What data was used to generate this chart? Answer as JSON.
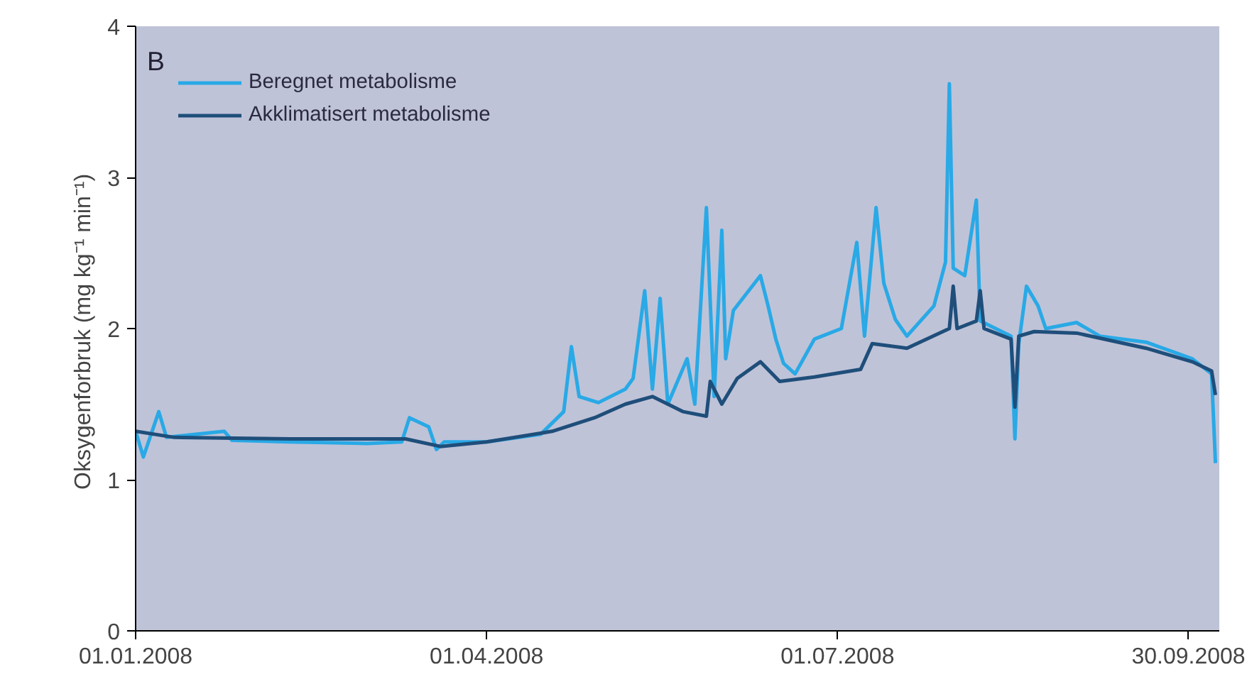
{
  "chart_data": {
    "type": "line",
    "title": "B",
    "ylabel": "Oksygenforbruk  (mg kg⁻¹ min⁻¹)",
    "xlim": [
      "2008-01-01",
      "2008-10-08"
    ],
    "xticks": [
      {
        "value": "2008-01-01",
        "label": "01.01.2008"
      },
      {
        "value": "2008-04-01",
        "label": "01.04.2008"
      },
      {
        "value": "2008-07-01",
        "label": "01.07.2008"
      },
      {
        "value": "2008-09-30",
        "label": "30.09.2008"
      }
    ],
    "ylim": [
      0,
      4
    ],
    "yticks": [
      0,
      1,
      2,
      3,
      4
    ],
    "grid": false,
    "legend": "top left",
    "marker": "none",
    "line_style": "solid",
    "series": [
      {
        "name": "Beregnet metabolisme",
        "color": "#29a9e6",
        "x": [
          "2008-01-01",
          "2008-01-03",
          "2008-01-05",
          "2008-01-07",
          "2008-01-09",
          "2008-01-24",
          "2008-01-26",
          "2008-02-10",
          "2008-03-01",
          "2008-03-10",
          "2008-03-12",
          "2008-03-17",
          "2008-03-19",
          "2008-03-21",
          "2008-04-01",
          "2008-04-15",
          "2008-04-21",
          "2008-04-23",
          "2008-04-25",
          "2008-04-30",
          "2008-05-07",
          "2008-05-09",
          "2008-05-12",
          "2008-05-14",
          "2008-05-16",
          "2008-05-18",
          "2008-05-23",
          "2008-05-25",
          "2008-05-28",
          "2008-05-30",
          "2008-06-01",
          "2008-06-02",
          "2008-06-04",
          "2008-06-11",
          "2008-06-13",
          "2008-06-15",
          "2008-06-17",
          "2008-06-20",
          "2008-06-25",
          "2008-07-02",
          "2008-07-06",
          "2008-07-08",
          "2008-07-11",
          "2008-07-13",
          "2008-07-16",
          "2008-07-19",
          "2008-07-26",
          "2008-07-29",
          "2008-07-30",
          "2008-07-31",
          "2008-08-03",
          "2008-08-06",
          "2008-08-07",
          "2008-08-11",
          "2008-08-15",
          "2008-08-16",
          "2008-08-17",
          "2008-08-19",
          "2008-08-22",
          "2008-08-24",
          "2008-09-01",
          "2008-09-07",
          "2008-09-19",
          "2008-10-01",
          "2008-10-06",
          "2008-10-07"
        ],
        "values": [
          1.32,
          1.15,
          1.3,
          1.45,
          1.28,
          1.32,
          1.26,
          1.25,
          1.24,
          1.25,
          1.41,
          1.35,
          1.2,
          1.25,
          1.25,
          1.3,
          1.45,
          1.88,
          1.55,
          1.51,
          1.6,
          1.67,
          2.25,
          1.6,
          2.2,
          1.5,
          1.8,
          1.5,
          2.8,
          1.55,
          2.65,
          1.8,
          2.12,
          2.35,
          2.15,
          1.93,
          1.77,
          1.7,
          1.93,
          2.0,
          2.57,
          1.95,
          2.8,
          2.3,
          2.06,
          1.95,
          2.15,
          2.44,
          3.62,
          2.4,
          2.35,
          2.85,
          2.05,
          2.0,
          1.95,
          1.27,
          1.9,
          2.28,
          2.15,
          2.0,
          2.04,
          1.95,
          1.91,
          1.8,
          1.7,
          1.11
        ]
      },
      {
        "name": "Akklimatisert metabolisme",
        "color": "#1f4e7a",
        "x": [
          "2008-01-01",
          "2008-01-11",
          "2008-02-10",
          "2008-03-11",
          "2008-03-20",
          "2008-04-01",
          "2008-04-18",
          "2008-04-29",
          "2008-05-07",
          "2008-05-14",
          "2008-05-22",
          "2008-05-28",
          "2008-05-29",
          "2008-06-01",
          "2008-06-05",
          "2008-06-11",
          "2008-06-16",
          "2008-06-25",
          "2008-07-07",
          "2008-07-10",
          "2008-07-19",
          "2008-07-30",
          "2008-07-31",
          "2008-08-01",
          "2008-08-06",
          "2008-08-07",
          "2008-08-08",
          "2008-08-13",
          "2008-08-15",
          "2008-08-16",
          "2008-08-17",
          "2008-08-21",
          "2008-09-01",
          "2008-09-19",
          "2008-10-01",
          "2008-10-06",
          "2008-10-07"
        ],
        "values": [
          1.32,
          1.28,
          1.27,
          1.27,
          1.22,
          1.25,
          1.32,
          1.41,
          1.5,
          1.55,
          1.45,
          1.42,
          1.65,
          1.5,
          1.67,
          1.78,
          1.65,
          1.68,
          1.73,
          1.9,
          1.87,
          2.0,
          2.28,
          2.0,
          2.05,
          2.25,
          2.0,
          1.95,
          1.93,
          1.48,
          1.95,
          1.98,
          1.97,
          1.87,
          1.78,
          1.72,
          1.56
        ]
      }
    ]
  }
}
